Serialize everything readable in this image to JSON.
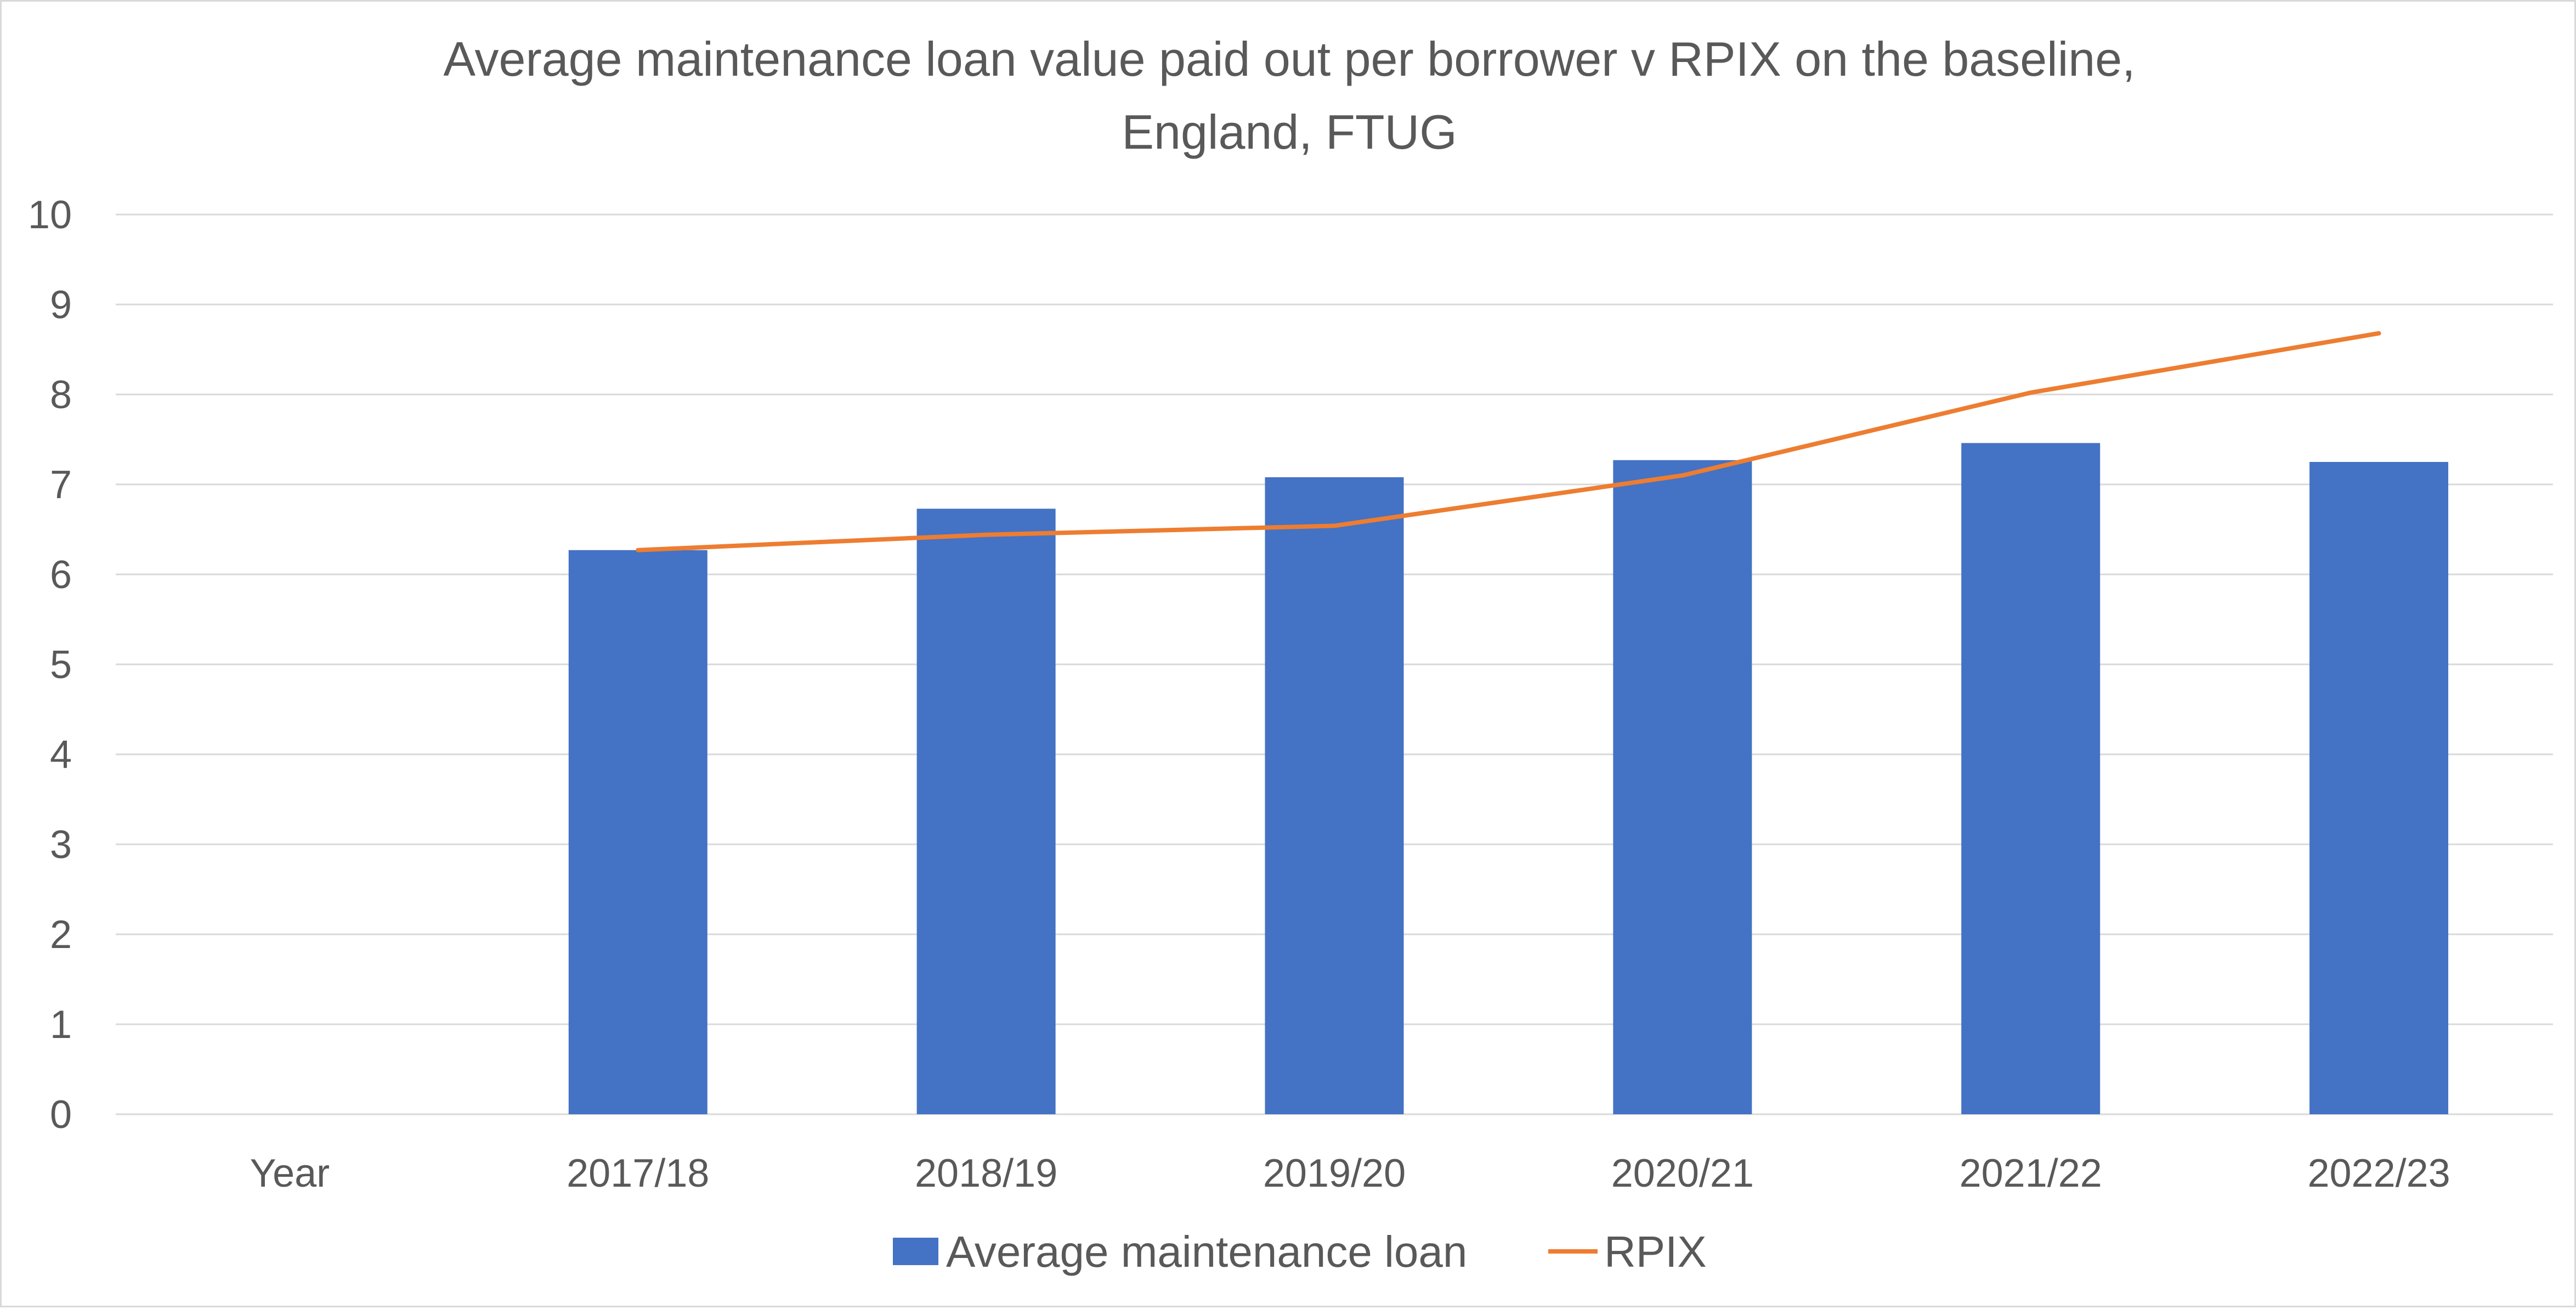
{
  "chart_data": {
    "type": "bar",
    "title_lines": [
      "Average maintenance loan value paid out per borrower v RPIX on the baseline,",
      "England, FTUG"
    ],
    "categories": [
      "Year",
      "2017/18",
      "2018/19",
      "2019/20",
      "2020/21",
      "2021/22",
      "2022/23"
    ],
    "series": [
      {
        "name": "Average maintenance loan",
        "kind": "bar",
        "color": "#4472C4",
        "values": [
          null,
          6.27,
          6.73,
          7.08,
          7.27,
          7.46,
          7.25
        ]
      },
      {
        "name": "RPIX",
        "kind": "line",
        "color": "#ED7D31",
        "values": [
          null,
          6.27,
          6.44,
          6.54,
          7.1,
          8.02,
          8.68
        ]
      }
    ],
    "ylim": [
      0,
      10
    ],
    "yticks": [
      "0",
      "1",
      "2",
      "3",
      "4",
      "5",
      "6",
      "7",
      "8",
      "9",
      "10"
    ],
    "xlabel": "",
    "ylabel": "",
    "grid": true,
    "legend": "bottom"
  }
}
